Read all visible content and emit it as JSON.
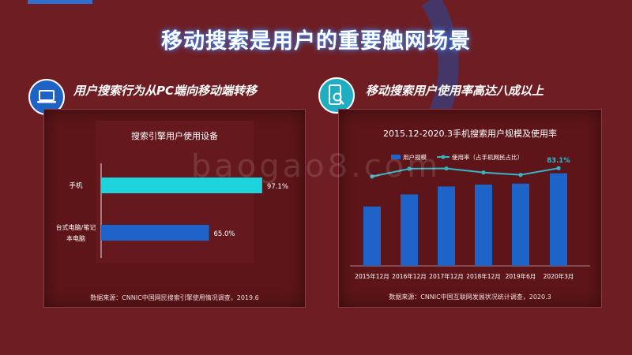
{
  "page_title": "移动搜索是用户的重要触网场景",
  "watermark": "baogao8.com",
  "left_section": {
    "heading": "用户搜索行为从PC端向移动端转移",
    "icon": "laptop-icon"
  },
  "right_section": {
    "heading": "移动搜索用户使用率高达八成以上",
    "icon": "mobile-search-icon"
  },
  "colors": {
    "background": "#6e1d22",
    "cyan_bar": "#1fd3dc",
    "blue_bar": "#1e63c7",
    "line": "#35b6c6"
  },
  "chart_data": [
    {
      "type": "bar",
      "orientation": "horizontal",
      "title": "搜索引擎用户使用设备",
      "categories": [
        "手机",
        "台式电脑/笔记本电脑"
      ],
      "values": [
        97.1,
        65.0
      ],
      "value_labels": [
        "97.1%",
        "65.0%"
      ],
      "xlim": [
        0,
        100
      ],
      "grid": false,
      "source": "数据来源：CNNIC中国网民搜索引擎使用情况调查，2019.6"
    },
    {
      "type": "bar",
      "title": "2015.12-2020.3手机搜索用户规模及使用率",
      "categories": [
        "2015年12月",
        "2016年12月",
        "2017年12月",
        "2018年12月",
        "2019年6月",
        "2020年3月"
      ],
      "series": [
        {
          "name": "用户规模",
          "type": "bar",
          "values": [
            47800,
            57500,
            63900,
            65400,
            66200,
            74500
          ]
        },
        {
          "name": "使用率（占手机网民占比）",
          "type": "line",
          "values": [
            77.1,
            82.7,
            82.9,
            80.0,
            78.3,
            83.1
          ]
        }
      ],
      "highlight_label": "83.1%",
      "legend": "top-left",
      "grid": false,
      "source": "数据来源：CNNIC中国互联网发展状况统计调查，2020.3"
    }
  ]
}
